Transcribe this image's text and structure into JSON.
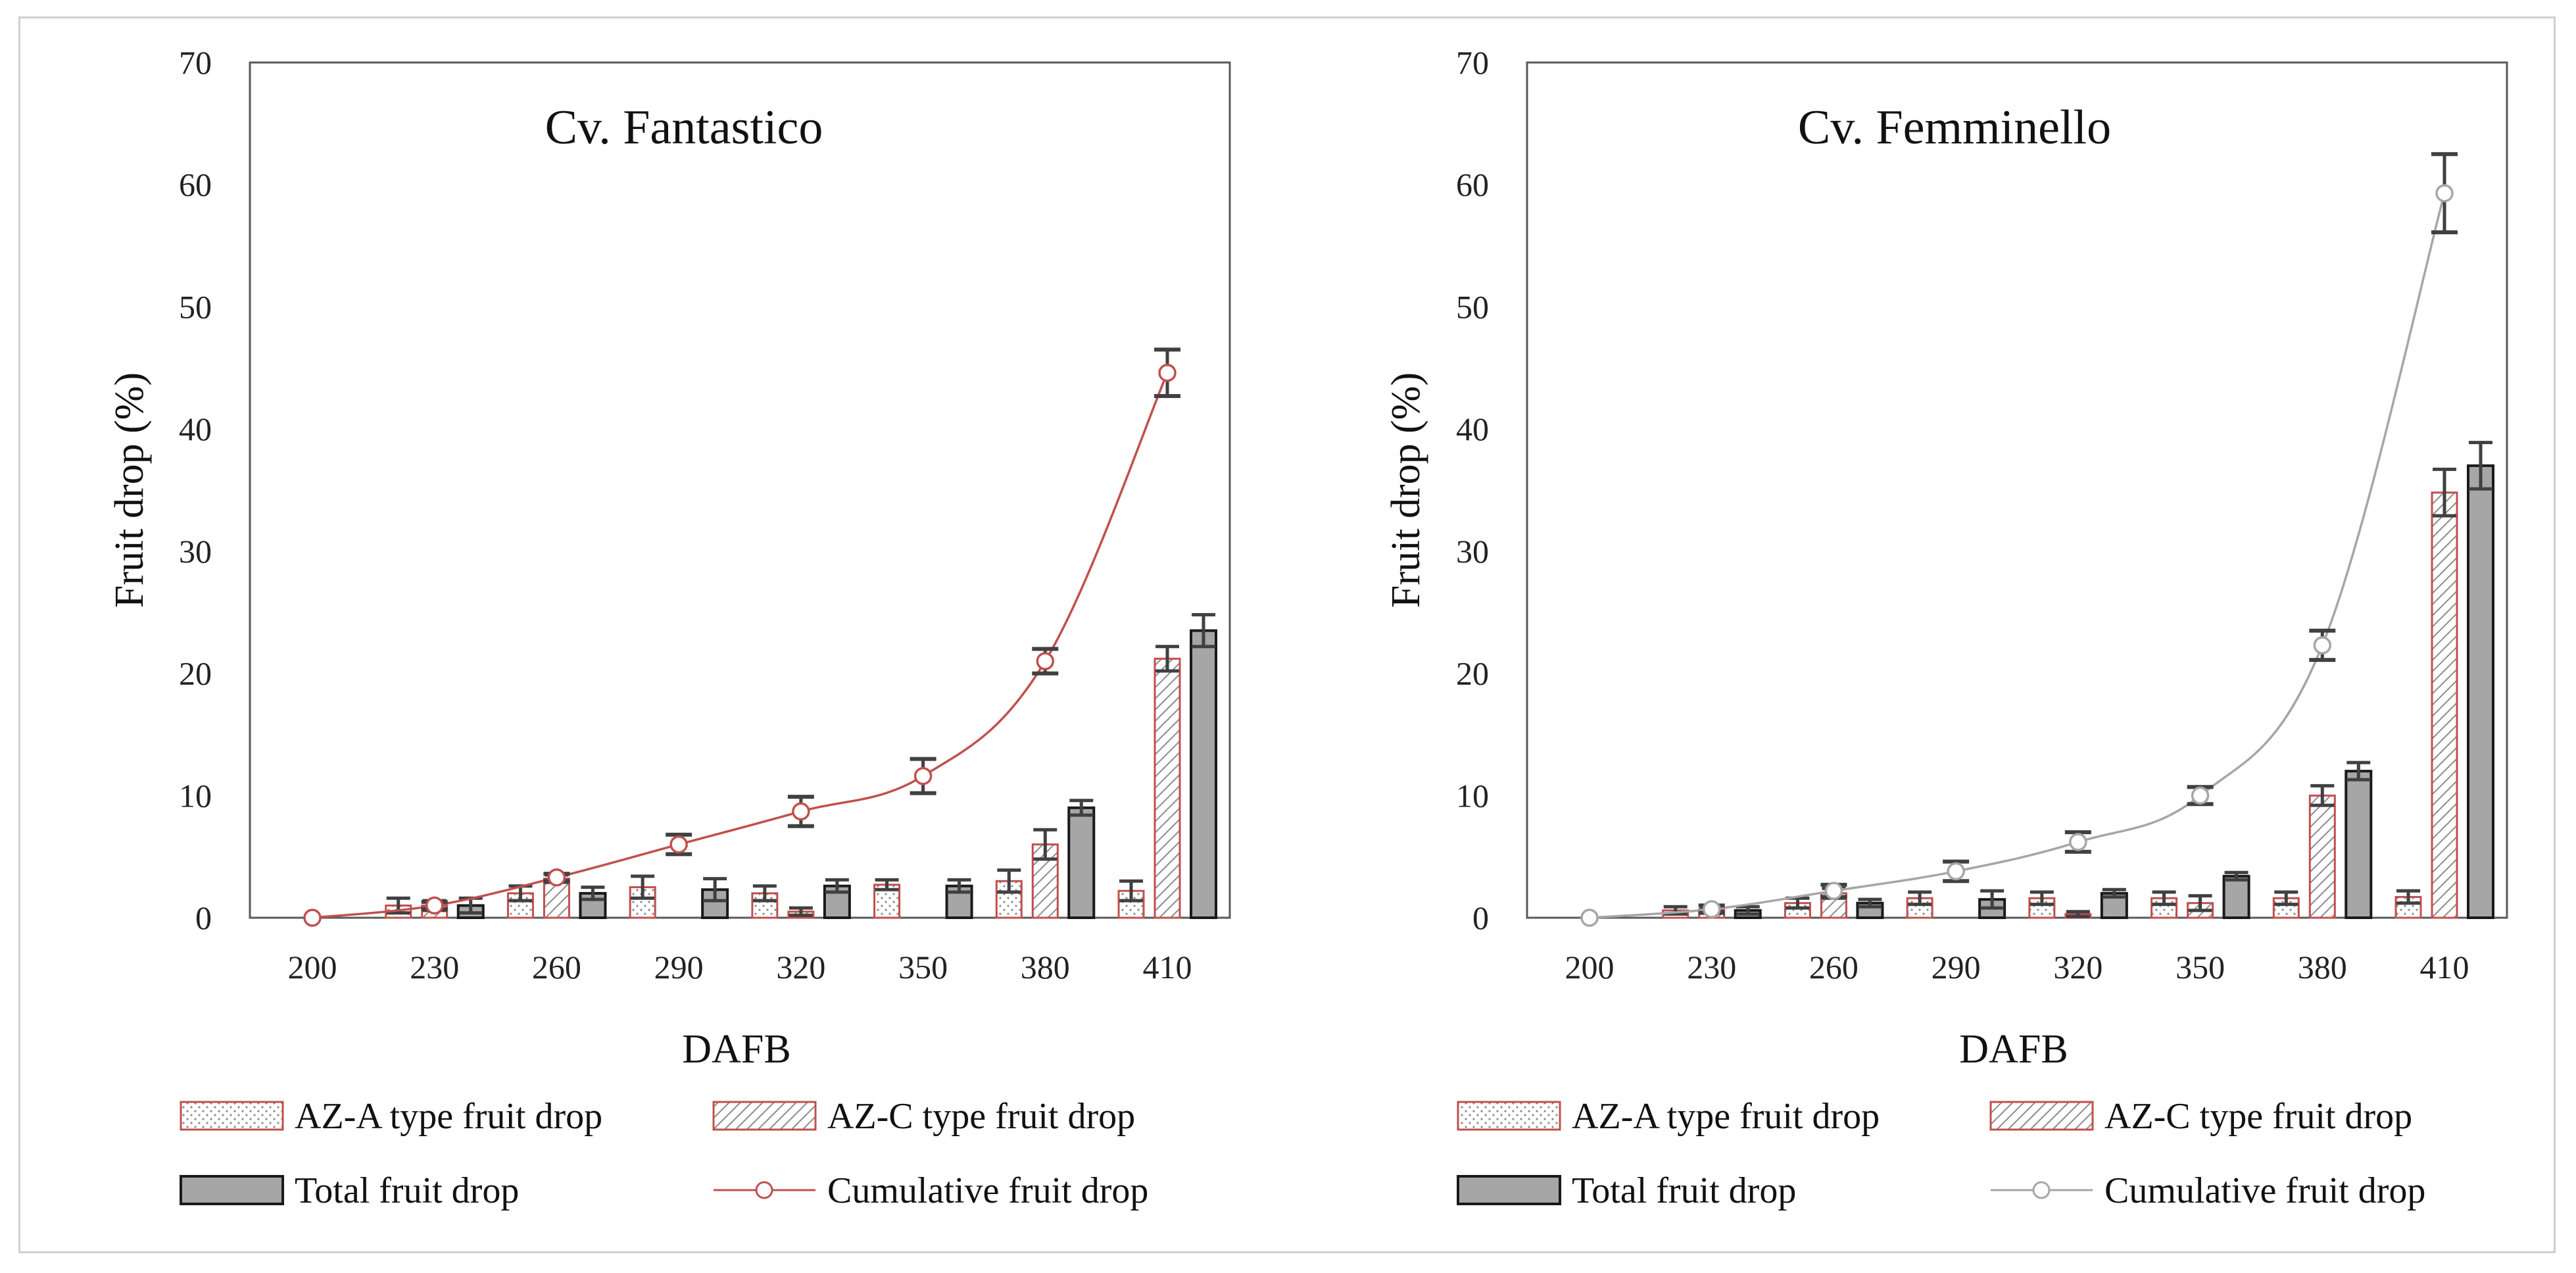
{
  "colors": {
    "fantastico_accent": "#c0504d",
    "femminello_accent": "#a6a6a6",
    "total_fill": "#a6a6a6",
    "total_stroke": "#1a1a1a",
    "errorbar": "#404040",
    "plot_border": "#595959",
    "azc_hatch": "#8c8c8c",
    "aza_dots": "#8c8c8c"
  },
  "chart_data": [
    {
      "type": "bar",
      "title": "Cv. Fantastico",
      "xlabel": "DAFB",
      "ylabel": "Fruit drop (%)",
      "ylim": [
        0,
        70
      ],
      "yticks": [
        0,
        10,
        20,
        30,
        40,
        50,
        60,
        70
      ],
      "categories": [
        "200",
        "230",
        "260",
        "290",
        "320",
        "350",
        "380",
        "410"
      ],
      "series": [
        {
          "name": "AZ-A type fruit drop",
          "kind": "bar",
          "values": [
            0,
            1.0,
            2.0,
            2.5,
            2.0,
            2.7,
            3.0,
            2.2
          ],
          "errors": [
            0,
            0.6,
            0.6,
            0.9,
            0.6,
            0.4,
            0.9,
            0.8
          ]
        },
        {
          "name": "AZ-C type fruit drop",
          "kind": "bar",
          "values": [
            0,
            1.0,
            3.2,
            0,
            0.5,
            0,
            6.0,
            21.2
          ],
          "errors": [
            0,
            0.4,
            0.3,
            0,
            0.3,
            0,
            1.2,
            1.0
          ]
        },
        {
          "name": "Total fruit drop",
          "kind": "bar",
          "values": [
            0,
            1.0,
            2.0,
            2.3,
            2.6,
            2.6,
            9.0,
            23.5
          ],
          "errors": [
            0,
            0.6,
            0.5,
            0.9,
            0.5,
            0.5,
            0.6,
            1.3
          ]
        },
        {
          "name": "Cumulative fruit drop",
          "kind": "line",
          "values": [
            0,
            1.0,
            3.3,
            6.0,
            8.7,
            11.6,
            21.0,
            44.6
          ],
          "errors": [
            0,
            0.3,
            0.3,
            0.8,
            1.2,
            1.4,
            1.0,
            1.9
          ]
        }
      ],
      "legend": "bottom"
    },
    {
      "type": "bar",
      "title": "Cv. Femminello",
      "xlabel": "DAFB",
      "ylabel": "Fruit drop (%)",
      "ylim": [
        0,
        70
      ],
      "yticks": [
        0,
        10,
        20,
        30,
        40,
        50,
        60,
        70
      ],
      "categories": [
        "200",
        "230",
        "260",
        "290",
        "320",
        "350",
        "380",
        "410"
      ],
      "series": [
        {
          "name": "AZ-A type fruit drop",
          "kind": "bar",
          "values": [
            0,
            0.6,
            1.2,
            1.6,
            1.6,
            1.6,
            1.6,
            1.7
          ],
          "errors": [
            0,
            0.3,
            0.4,
            0.5,
            0.5,
            0.5,
            0.5,
            0.5
          ]
        },
        {
          "name": "AZ-C type fruit drop",
          "kind": "bar",
          "values": [
            0,
            0.7,
            2.0,
            0,
            0.3,
            1.2,
            10.0,
            34.8
          ],
          "errors": [
            0,
            0.2,
            0.4,
            0,
            0.2,
            0.6,
            0.8,
            1.9
          ]
        },
        {
          "name": "Total fruit drop",
          "kind": "bar",
          "values": [
            0,
            0.6,
            1.2,
            1.5,
            2.0,
            3.4,
            12.0,
            37.0
          ],
          "errors": [
            0,
            0.3,
            0.3,
            0.7,
            0.3,
            0.3,
            0.7,
            1.9
          ]
        },
        {
          "name": "Cumulative fruit drop",
          "kind": "line",
          "values": [
            0,
            0.7,
            2.2,
            3.8,
            6.2,
            10.0,
            22.3,
            59.3
          ],
          "errors": [
            0,
            0.3,
            0.5,
            0.8,
            0.8,
            0.7,
            1.2,
            3.2
          ]
        }
      ],
      "legend": "bottom"
    }
  ]
}
